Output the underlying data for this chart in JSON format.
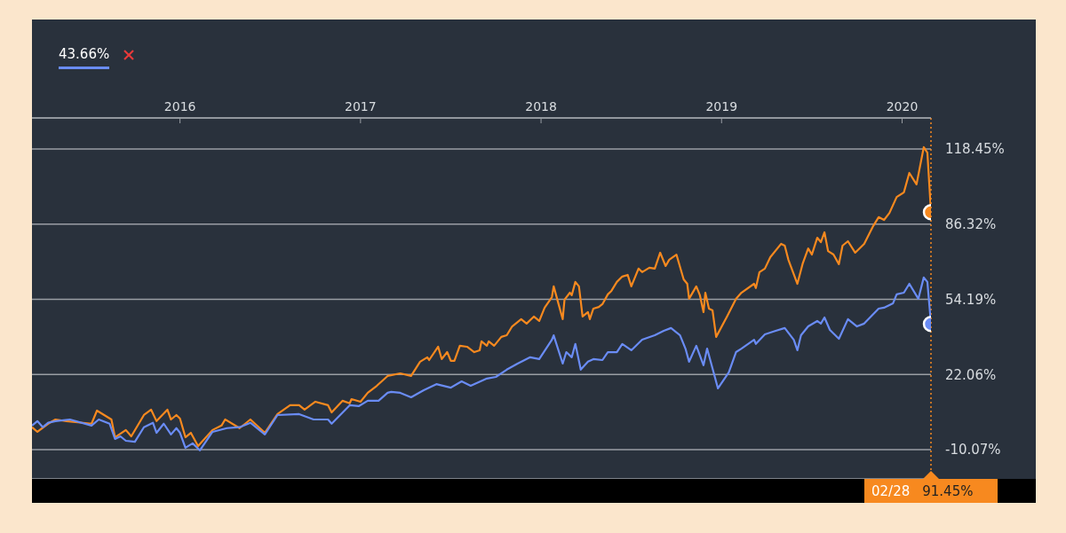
{
  "chart_data": {
    "type": "line",
    "x": [
      2015.18,
      2015.21,
      2015.27,
      2015.31,
      2015.37,
      2015.51,
      2015.54,
      2015.62,
      2015.64,
      2015.7,
      2015.73,
      2015.8,
      2015.84,
      2015.87,
      2015.93,
      2015.95,
      2015.98,
      2016.0,
      2016.03,
      2016.06,
      2016.1,
      2016.18,
      2016.23,
      2016.25,
      2016.33,
      2016.39,
      2016.47,
      2016.54,
      2016.61,
      2016.66,
      2016.69,
      2016.75,
      2016.82,
      2016.84,
      2016.9,
      2016.94,
      2016.95,
      2017.0,
      2017.04,
      2017.09,
      2017.15,
      2017.22,
      2017.28,
      2017.33,
      2017.37,
      2017.38,
      2017.43,
      2017.45,
      2017.48,
      2017.5,
      2017.52,
      2017.55,
      2017.59,
      2017.63,
      2017.66,
      2017.67,
      2017.7,
      2017.71,
      2017.74,
      2017.78,
      2017.81,
      2017.84,
      2017.89,
      2017.92,
      2017.96,
      2017.99,
      2018.02,
      2018.06,
      2018.07,
      2018.12,
      2018.13,
      2018.16,
      2018.17,
      2018.19,
      2018.21,
      2018.23,
      2018.26,
      2018.27,
      2018.29,
      2018.32,
      2018.34,
      2018.37,
      2018.39,
      2018.42,
      2018.45,
      2018.48,
      2018.5,
      2018.54,
      2018.56,
      2018.6,
      2018.63,
      2018.66,
      2018.69,
      2018.71,
      2018.75,
      2018.79,
      2018.81,
      2018.82,
      2018.86,
      2018.88,
      2018.9,
      2018.91,
      2018.93,
      2018.95,
      2018.97,
      2019.03,
      2019.08,
      2019.11,
      2019.18,
      2019.19,
      2019.21,
      2019.24,
      2019.27,
      2019.33,
      2019.35,
      2019.37,
      2019.42,
      2019.45,
      2019.48,
      2019.5,
      2019.53,
      2019.55,
      2019.57,
      2019.59,
      2019.62,
      2019.65,
      2019.67,
      2019.7,
      2019.74,
      2019.79,
      2019.84,
      2019.87,
      2019.9,
      2019.93,
      2019.97,
      2020.01,
      2020.04,
      2020.08,
      2020.12,
      2020.14,
      2020.16
    ],
    "series": [
      {
        "color": "#f7891f",
        "values": [
          -0.5,
          -2.5,
          1.0,
          2.8,
          2.1,
          1.0,
          6.6,
          2.8,
          -4.8,
          -1.7,
          -4.4,
          4.7,
          7.0,
          2.1,
          7.0,
          2.8,
          4.7,
          3.2,
          -4.8,
          -2.9,
          -8.6,
          -1.7,
          0.2,
          2.8,
          -0.9,
          2.8,
          -2.9,
          5.1,
          8.9,
          8.9,
          7.0,
          10.4,
          8.9,
          5.8,
          10.8,
          9.7,
          11.5,
          10.4,
          14.2,
          17.2,
          21.4,
          22.5,
          21.4,
          27.5,
          29.4,
          28.2,
          33.9,
          28.6,
          31.6,
          27.9,
          27.9,
          34.3,
          33.9,
          31.6,
          32.4,
          36.2,
          34.3,
          36.2,
          34.3,
          38.1,
          38.8,
          42.6,
          45.7,
          43.8,
          46.8,
          44.9,
          50.6,
          55.1,
          59.7,
          45.7,
          54.0,
          57.0,
          55.9,
          61.6,
          59.7,
          46.8,
          48.7,
          45.7,
          50.2,
          50.9,
          52.1,
          56.3,
          57.8,
          61.6,
          63.9,
          64.6,
          59.7,
          67.3,
          65.8,
          67.7,
          67.3,
          74.1,
          68.4,
          71.1,
          73.3,
          62.7,
          60.8,
          54.4,
          59.7,
          55.9,
          48.7,
          57.0,
          50.2,
          49.4,
          38.1,
          46.8,
          54.4,
          57.0,
          60.8,
          59.0,
          65.8,
          67.3,
          72.2,
          77.9,
          77.1,
          71.1,
          60.8,
          69.6,
          75.9,
          73.3,
          80.5,
          78.6,
          82.8,
          74.8,
          73.3,
          69.2,
          77.1,
          79.0,
          74.1,
          77.9,
          85.5,
          89.3,
          88.1,
          91.1,
          97.9,
          99.9,
          108.2,
          103.3,
          119.2,
          116.9,
          91.45
        ]
      },
      {
        "color": "#6a8cf5",
        "x": [
          2015.18,
          2015.21,
          2015.24,
          2015.27,
          2015.31,
          2015.39,
          2015.51,
          2015.55,
          2015.61,
          2015.64,
          2015.67,
          2015.7,
          2015.75,
          2015.8,
          2015.85,
          2015.87,
          2015.91,
          2015.95,
          2015.98,
          2016.0,
          2016.03,
          2016.07,
          2016.11,
          2016.18,
          2016.26,
          2016.33,
          2016.39,
          2016.47,
          2016.54,
          2016.66,
          2016.74,
          2016.82,
          2016.84,
          2016.94,
          2016.99,
          2017.04,
          2017.1,
          2017.15,
          2017.17,
          2017.22,
          2017.28,
          2017.35,
          2017.42,
          2017.5,
          2017.56,
          2017.61,
          2017.7,
          2017.75,
          2017.81,
          2017.87,
          2017.94,
          2017.99,
          2018.06,
          2018.07,
          2018.12,
          2018.14,
          2018.17,
          2018.19,
          2018.22,
          2018.26,
          2018.29,
          2018.34,
          2018.37,
          2018.42,
          2018.45,
          2018.5,
          2018.56,
          2018.63,
          2018.68,
          2018.72,
          2018.77,
          2018.8,
          2018.82,
          2018.86,
          2018.9,
          2018.92,
          2018.98,
          2019.04,
          2019.08,
          2019.11,
          2019.18,
          2019.19,
          2019.24,
          2019.3,
          2019.35,
          2019.4,
          2019.42,
          2019.44,
          2019.48,
          2019.53,
          2019.55,
          2019.57,
          2019.6,
          2019.65,
          2019.7,
          2019.75,
          2019.79,
          2019.87,
          2019.9,
          2019.95,
          2019.97,
          2020.01,
          2020.04,
          2020.09,
          2020.12,
          2020.14,
          2020.16
        ],
        "values": [
          0.2,
          2.1,
          -0.5,
          1.4,
          2.1,
          2.8,
          0.2,
          2.8,
          1.0,
          -5.5,
          -4.4,
          -6.3,
          -6.7,
          -0.5,
          1.4,
          -2.9,
          1.0,
          -3.6,
          -0.9,
          -2.9,
          -9.3,
          -7.4,
          -10.4,
          -2.5,
          -0.9,
          -0.5,
          1.4,
          -3.6,
          4.7,
          5.1,
          2.8,
          2.8,
          1.0,
          8.9,
          8.5,
          10.8,
          10.8,
          14.2,
          14.6,
          14.2,
          12.3,
          15.3,
          17.9,
          16.4,
          19.1,
          17.2,
          20.3,
          21.0,
          24.1,
          26.7,
          29.4,
          28.6,
          36.9,
          38.8,
          26.7,
          31.6,
          29.4,
          35.1,
          24.1,
          27.5,
          28.6,
          28.2,
          31.6,
          31.6,
          35.1,
          32.4,
          36.9,
          38.8,
          40.7,
          41.9,
          38.8,
          33.1,
          27.5,
          34.3,
          26.0,
          33.1,
          16.1,
          22.9,
          31.6,
          33.1,
          36.9,
          35.1,
          39.2,
          40.7,
          41.9,
          36.9,
          32.4,
          38.8,
          42.6,
          44.9,
          43.8,
          46.4,
          41.1,
          37.3,
          45.7,
          42.6,
          43.8,
          50.2,
          50.6,
          52.5,
          56.3,
          57.0,
          60.8,
          54.4,
          63.5,
          61.6,
          43.66
        ]
      }
    ],
    "xlim": [
      2015.18,
      2020.16
    ],
    "xticks": [
      2016,
      2017,
      2018,
      2019,
      2020
    ],
    "ylim": [
      -22.6,
      131.7
    ],
    "yticks": [
      {
        "value": -10.07,
        "label": "-10.07%"
      },
      {
        "value": 22.06,
        "label": "22.06%"
      },
      {
        "value": 54.19,
        "label": "54.19%"
      },
      {
        "value": 86.32,
        "label": "86.32%"
      },
      {
        "value": 118.45,
        "label": "118.45%"
      }
    ],
    "grid": "y",
    "marker": "none",
    "line_style": "solid",
    "ref_lines": [
      {
        "axis": "x",
        "value": 2020.16,
        "color": "#f7891f",
        "line_style": "dotted"
      }
    ],
    "annotations": [
      "43.66%",
      "02/28",
      "91.45%"
    ]
  }
}
